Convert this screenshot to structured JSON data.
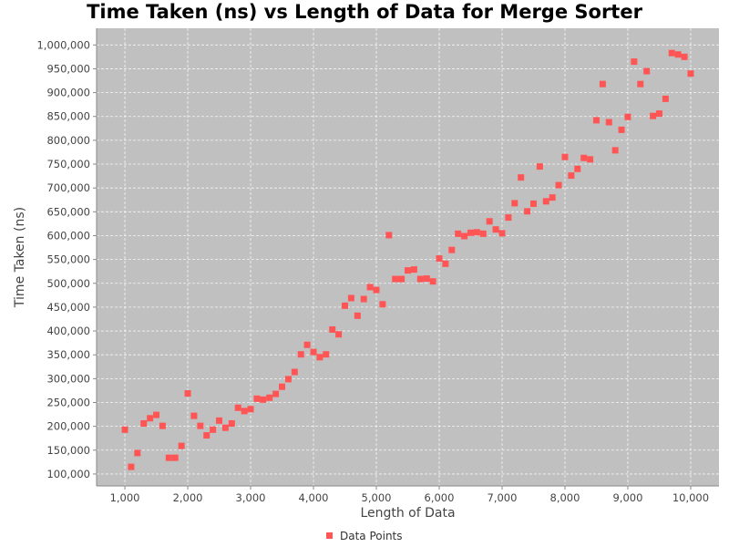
{
  "colors": {
    "plot_background": "#c0c0c0",
    "series": "#ff5555",
    "axis": "#888888"
  },
  "chart_data": {
    "type": "scatter",
    "title": "Time Taken (ns) vs Length of Data for Merge Sorter",
    "xlabel": "Length of Data",
    "ylabel": "Time Taken (ns)",
    "xlim": [
      550,
      10450
    ],
    "ylim": [
      75000,
      1035000
    ],
    "x_ticks": [
      1000,
      2000,
      3000,
      4000,
      5000,
      6000,
      7000,
      8000,
      9000,
      10000
    ],
    "x_tick_labels": [
      "1,000",
      "2,000",
      "3,000",
      "4,000",
      "5,000",
      "6,000",
      "7,000",
      "8,000",
      "9,000",
      "10,000"
    ],
    "y_ticks": [
      100000,
      150000,
      200000,
      250000,
      300000,
      350000,
      400000,
      450000,
      500000,
      550000,
      600000,
      650000,
      700000,
      750000,
      800000,
      850000,
      900000,
      950000,
      1000000
    ],
    "y_tick_labels": [
      "100,000",
      "150,000",
      "200,000",
      "250,000",
      "300,000",
      "350,000",
      "400,000",
      "450,000",
      "500,000",
      "550,000",
      "600,000",
      "650,000",
      "700,000",
      "750,000",
      "800,000",
      "850,000",
      "900,000",
      "950,000",
      "1,000,000"
    ],
    "grid": true,
    "legend": {
      "position": "bottom-center",
      "entries": [
        "Data Points"
      ]
    },
    "series": [
      {
        "name": "Data Points",
        "marker": "square",
        "points": [
          [
            1000,
            193000
          ],
          [
            1100,
            115000
          ],
          [
            1200,
            144000
          ],
          [
            1300,
            206000
          ],
          [
            1400,
            217000
          ],
          [
            1500,
            224000
          ],
          [
            1600,
            201000
          ],
          [
            1700,
            134000
          ],
          [
            1800,
            134000
          ],
          [
            1900,
            159000
          ],
          [
            2000,
            269000
          ],
          [
            2100,
            222000
          ],
          [
            2200,
            201000
          ],
          [
            2300,
            181000
          ],
          [
            2400,
            193000
          ],
          [
            2500,
            212000
          ],
          [
            2600,
            197000
          ],
          [
            2700,
            206000
          ],
          [
            2800,
            239000
          ],
          [
            2900,
            232000
          ],
          [
            3000,
            236000
          ],
          [
            3100,
            258000
          ],
          [
            3200,
            256000
          ],
          [
            3300,
            260000
          ],
          [
            3400,
            268000
          ],
          [
            3500,
            283000
          ],
          [
            3600,
            299000
          ],
          [
            3700,
            314000
          ],
          [
            3800,
            351000
          ],
          [
            3900,
            371000
          ],
          [
            4000,
            356000
          ],
          [
            4100,
            345000
          ],
          [
            4200,
            351000
          ],
          [
            4300,
            403000
          ],
          [
            4400,
            393000
          ],
          [
            4500,
            453000
          ],
          [
            4600,
            469000
          ],
          [
            4700,
            432000
          ],
          [
            4800,
            467000
          ],
          [
            4900,
            492000
          ],
          [
            5000,
            486000
          ],
          [
            5100,
            456000
          ],
          [
            5200,
            601000
          ],
          [
            5300,
            509000
          ],
          [
            5400,
            509000
          ],
          [
            5500,
            527000
          ],
          [
            5600,
            529000
          ],
          [
            5700,
            509000
          ],
          [
            5800,
            510000
          ],
          [
            5900,
            504000
          ],
          [
            6000,
            552000
          ],
          [
            6100,
            541000
          ],
          [
            6200,
            570000
          ],
          [
            6300,
            604000
          ],
          [
            6400,
            599000
          ],
          [
            6500,
            606000
          ],
          [
            6600,
            607000
          ],
          [
            6700,
            604000
          ],
          [
            6800,
            630000
          ],
          [
            6900,
            613000
          ],
          [
            7000,
            605000
          ],
          [
            7100,
            638000
          ],
          [
            7200,
            668000
          ],
          [
            7300,
            722000
          ],
          [
            7400,
            651000
          ],
          [
            7500,
            667000
          ],
          [
            7600,
            745000
          ],
          [
            7700,
            672000
          ],
          [
            7800,
            680000
          ],
          [
            7900,
            706000
          ],
          [
            8000,
            765000
          ],
          [
            8100,
            726000
          ],
          [
            8200,
            740000
          ],
          [
            8300,
            763000
          ],
          [
            8400,
            760000
          ],
          [
            8500,
            842000
          ],
          [
            8600,
            918000
          ],
          [
            8700,
            838000
          ],
          [
            8800,
            779000
          ],
          [
            8900,
            822000
          ],
          [
            9000,
            849000
          ],
          [
            9100,
            965000
          ],
          [
            9200,
            918000
          ],
          [
            9300,
            945000
          ],
          [
            9400,
            851000
          ],
          [
            9500,
            856000
          ],
          [
            9600,
            887000
          ],
          [
            9700,
            983000
          ],
          [
            9800,
            980000
          ],
          [
            9900,
            975000
          ],
          [
            10000,
            940000
          ]
        ]
      }
    ]
  }
}
